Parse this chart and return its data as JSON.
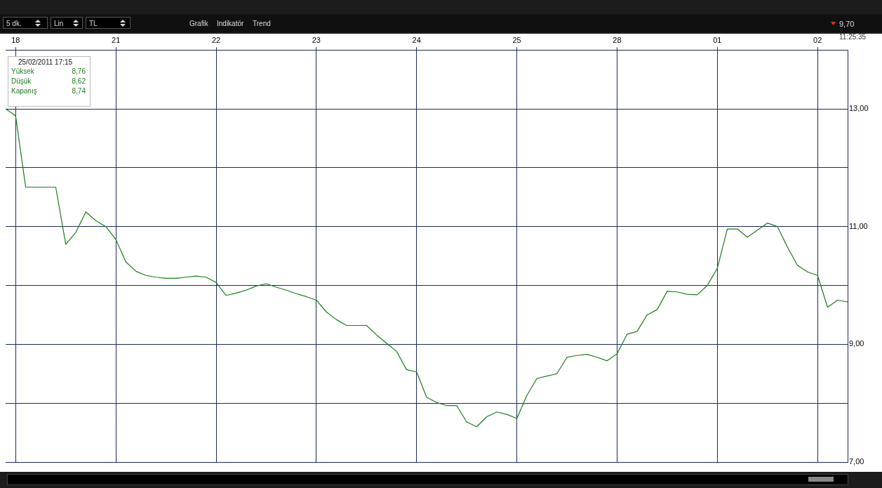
{
  "chart_data": {
    "type": "line",
    "categories": [
      null,
      "18",
      null,
      null,
      null,
      null,
      null,
      null,
      null,
      null,
      null,
      "21",
      null,
      null,
      null,
      null,
      null,
      null,
      null,
      null,
      null,
      "22",
      null,
      null,
      null,
      null,
      null,
      null,
      null,
      null,
      null,
      "23",
      null,
      null,
      null,
      null,
      null,
      null,
      null,
      null,
      null,
      "24",
      null,
      null,
      null,
      null,
      null,
      null,
      null,
      null,
      null,
      "25",
      null,
      null,
      null,
      null,
      null,
      null,
      null,
      null,
      null,
      "28",
      null,
      null,
      null,
      null,
      null,
      null,
      null,
      null,
      null,
      "01",
      null,
      null,
      null,
      null,
      null,
      null,
      null,
      null,
      null,
      "02",
      null,
      null,
      null
    ],
    "series": [
      {
        "color": "#1e7a1e",
        "values": [
          13.0,
          12.88,
          11.67,
          11.67,
          11.67,
          11.67,
          10.7,
          10.9,
          11.25,
          11.1,
          11.0,
          10.78,
          10.4,
          10.24,
          10.17,
          10.14,
          10.12,
          10.12,
          10.14,
          10.16,
          10.14,
          10.05,
          9.83,
          9.87,
          9.92,
          9.99,
          10.03,
          9.97,
          9.92,
          9.86,
          9.81,
          9.75,
          9.55,
          9.42,
          9.32,
          9.32,
          9.32,
          9.16,
          9.02,
          8.88,
          8.57,
          8.53,
          8.1,
          8.01,
          7.96,
          7.96,
          7.68,
          7.6,
          7.77,
          7.85,
          7.81,
          7.74,
          8.13,
          8.42,
          8.46,
          8.5,
          8.78,
          8.81,
          8.83,
          8.78,
          8.72,
          8.84,
          9.17,
          9.22,
          9.5,
          9.59,
          9.9,
          9.89,
          9.85,
          9.84,
          10.0,
          10.29,
          10.96,
          10.96,
          10.82,
          10.94,
          11.06,
          11.0,
          10.65,
          10.34,
          10.23,
          10.17,
          9.63,
          9.75,
          9.72
        ]
      }
    ],
    "ylim": [
      7,
      14
    ],
    "yticks": [
      {
        "value": 7,
        "label": "7,00"
      },
      {
        "value": 8,
        "label": null
      },
      {
        "value": 9,
        "label": "9,00"
      },
      {
        "value": 10,
        "label": null
      },
      {
        "value": 11,
        "label": "11,00"
      },
      {
        "value": 12,
        "label": null
      },
      {
        "value": 13,
        "label": "13,00"
      }
    ],
    "grid": true,
    "marker": "none",
    "annotations": [
      "5 dk.",
      "Lin",
      "TL",
      "Grafik",
      "Indikatör",
      "Trend",
      "9,70",
      "11:25:35",
      "25/02/2011 17:15",
      "Yüksek",
      "8,76",
      "Düşük",
      "8,62",
      "Kapanış",
      "8,74"
    ]
  }
}
